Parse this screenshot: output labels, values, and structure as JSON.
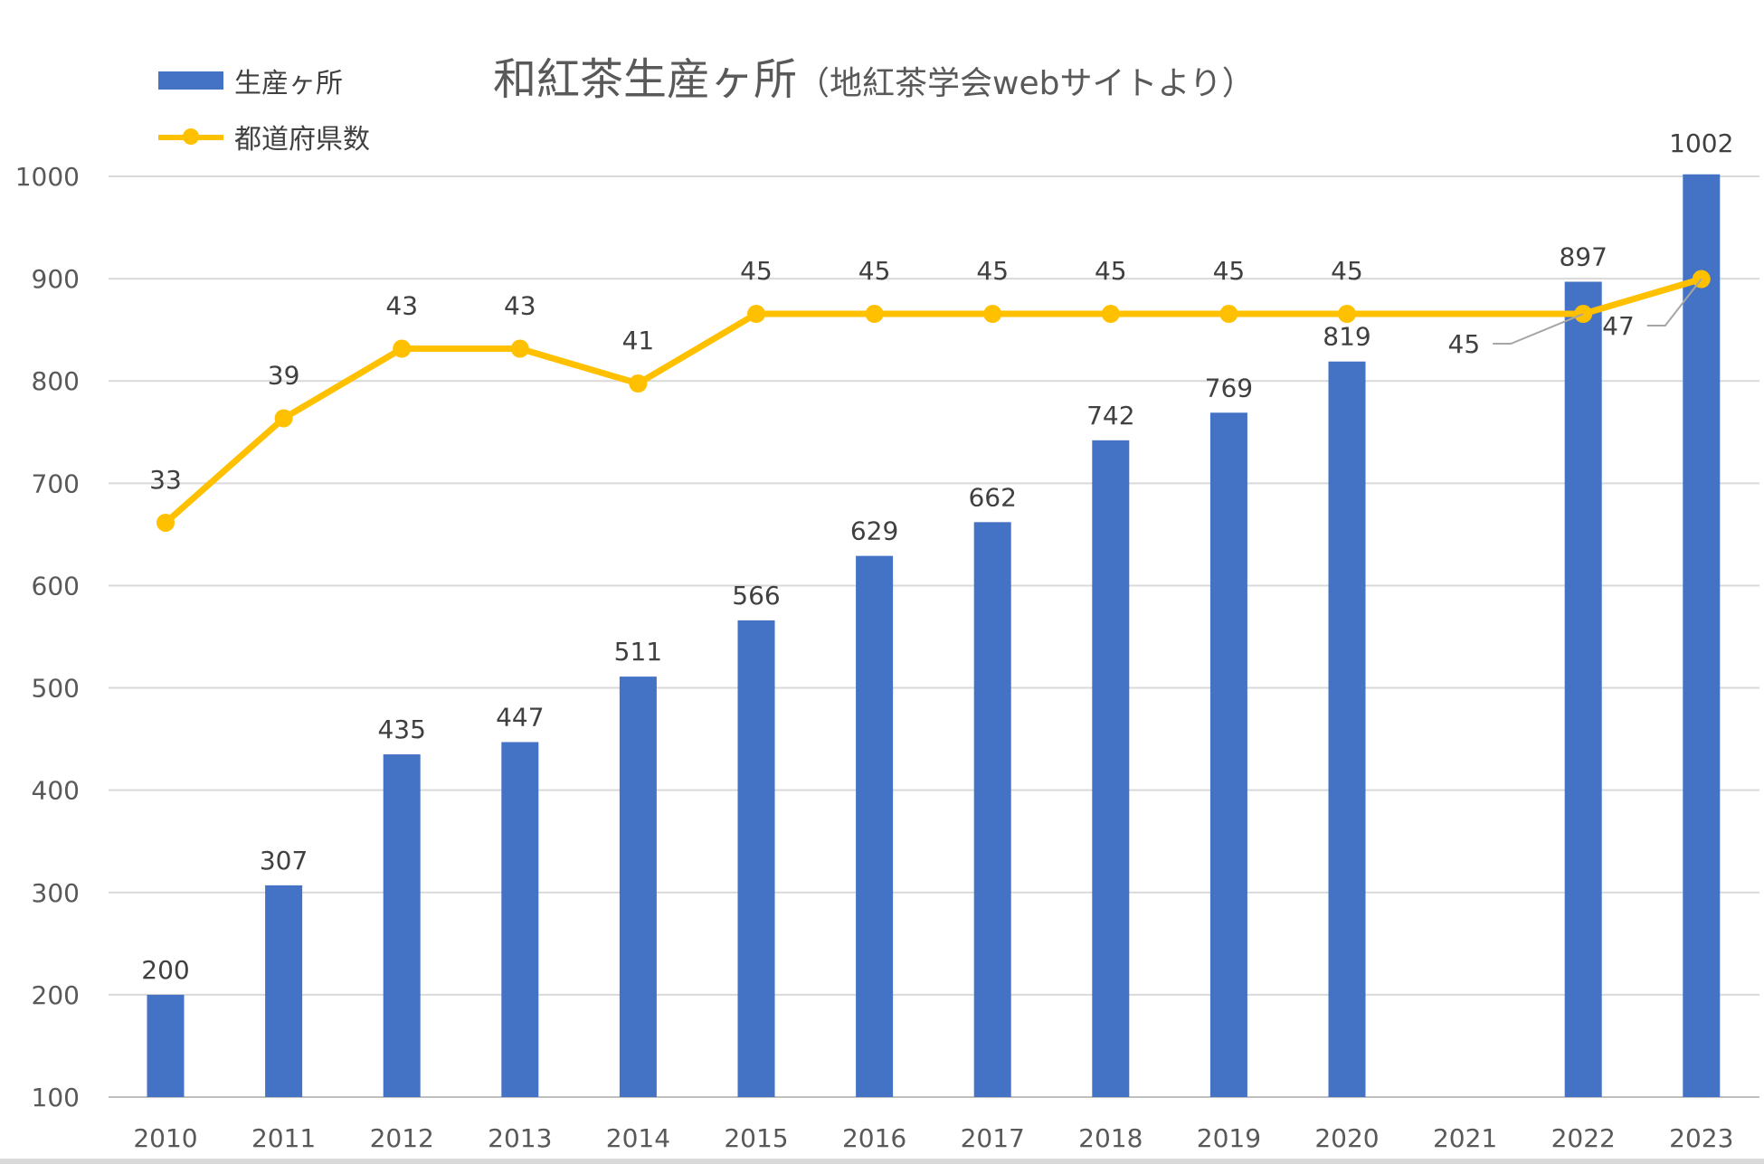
{
  "chart_data": {
    "type": "bar+line",
    "title": "和紅茶生産ヶ所",
    "subtitle": "（地紅茶学会webサイトより）",
    "categories": [
      "2010",
      "2011",
      "2012",
      "2013",
      "2014",
      "2015",
      "2016",
      "2017",
      "2018",
      "2019",
      "2020",
      "2021",
      "2022",
      "2023"
    ],
    "series": [
      {
        "name": "生産ヶ所",
        "kind": "bar",
        "color": "#4472C4",
        "values": [
          200,
          307,
          435,
          447,
          511,
          566,
          629,
          662,
          742,
          769,
          819,
          null,
          897,
          1002
        ]
      },
      {
        "name": "都道府県数",
        "kind": "line",
        "color": "#FFC000",
        "values": [
          33,
          39,
          43,
          43,
          41,
          45,
          45,
          45,
          45,
          45,
          45,
          null,
          45,
          47
        ]
      }
    ],
    "y_axis": {
      "min": 100,
      "max": 1000,
      "step": 100,
      "ticks": [
        "100",
        "200",
        "300",
        "400",
        "500",
        "600",
        "700",
        "800",
        "900",
        "1000"
      ]
    },
    "secondary_axis_hidden": {
      "min": 0,
      "max": 52.9
    },
    "grid": true,
    "legend": "top-left"
  }
}
